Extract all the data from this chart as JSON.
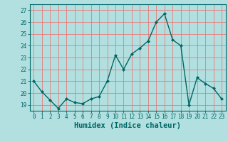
{
  "x": [
    0,
    1,
    2,
    3,
    4,
    5,
    6,
    7,
    8,
    9,
    10,
    11,
    12,
    13,
    14,
    15,
    16,
    17,
    18,
    19,
    20,
    21,
    22,
    23
  ],
  "y": [
    21.0,
    20.1,
    19.4,
    18.7,
    19.5,
    19.2,
    19.1,
    19.5,
    19.7,
    21.0,
    23.2,
    22.0,
    23.3,
    23.8,
    24.4,
    26.0,
    26.7,
    24.5,
    24.0,
    19.0,
    21.3,
    20.8,
    20.4,
    19.5
  ],
  "line_color": "#006666",
  "marker": "D",
  "marker_size": 2.0,
  "bg_color": "#b2e0e0",
  "grid_color": "#e87878",
  "axis_color": "#006666",
  "xlabel": "Humidex (Indice chaleur)",
  "ylabel_ticks": [
    19,
    20,
    21,
    22,
    23,
    24,
    25,
    26,
    27
  ],
  "ylim": [
    18.5,
    27.5
  ],
  "xlim": [
    -0.5,
    23.5
  ],
  "xticks": [
    0,
    1,
    2,
    3,
    4,
    5,
    6,
    7,
    8,
    9,
    10,
    11,
    12,
    13,
    14,
    15,
    16,
    17,
    18,
    19,
    20,
    21,
    22,
    23
  ],
  "tick_fontsize": 5.5,
  "xlabel_fontsize": 7.5,
  "linewidth": 1.0
}
